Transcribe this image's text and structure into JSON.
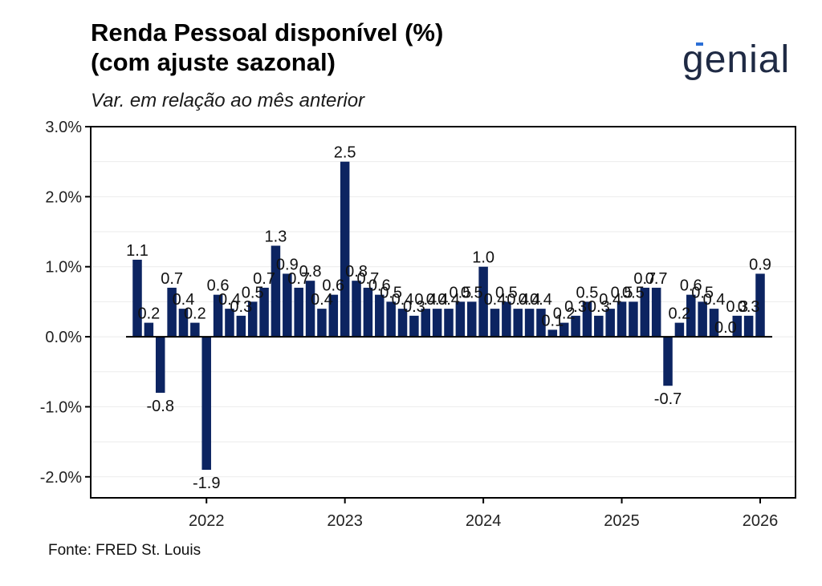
{
  "header": {
    "title": "Renda Pessoal disponível (%)\n(com ajuste sazonal)",
    "subtitle": "Var. em relação ao mês anterior",
    "logo_text": "genial"
  },
  "footer": {
    "source": "Fonte: FRED St. Louis"
  },
  "colors": {
    "bar": "#0c2461",
    "axis": "#000000",
    "grid": "#ebebeb",
    "logo": "#1f2a44",
    "logo_accent": "#2b6fd6"
  },
  "chart_data": {
    "type": "bar",
    "title": "Renda Pessoal disponível (%) (com ajuste sazonal)",
    "subtitle": "Var. em relação ao mês anterior",
    "xlabel": "",
    "ylabel": "",
    "ylim": [
      -2.3,
      3.0
    ],
    "yticks": [
      -2.0,
      -1.0,
      0.0,
      1.0,
      2.0,
      3.0
    ],
    "ytick_labels": [
      "-2.0%",
      "-1.0%",
      "0.0%",
      "1.0%",
      "2.0%",
      "3.0%"
    ],
    "xticks": [
      "2022",
      "2023",
      "2024",
      "2025",
      "2026"
    ],
    "grid": "horizontal",
    "categories": [
      "2021-07",
      "2021-08",
      "2021-09",
      "2021-10",
      "2021-11",
      "2021-12",
      "2022-01",
      "2022-02",
      "2022-03",
      "2022-04",
      "2022-05",
      "2022-06",
      "2022-07",
      "2022-08",
      "2022-09",
      "2022-10",
      "2022-11",
      "2022-12",
      "2023-01",
      "2023-02",
      "2023-03",
      "2023-04",
      "2023-05",
      "2023-06",
      "2023-07",
      "2023-08",
      "2023-09",
      "2023-10",
      "2023-11",
      "2023-12",
      "2024-01",
      "2024-02",
      "2024-03",
      "2024-04",
      "2024-05",
      "2024-06",
      "2024-07",
      "2024-08",
      "2024-09",
      "2024-10",
      "2024-11",
      "2024-12",
      "2025-01",
      "2025-02",
      "2025-03",
      "2025-04",
      "2025-05",
      "2025-06",
      "2025-07",
      "2025-08",
      "2025-09",
      "2025-10",
      "2025-11",
      "2025-12",
      "2026-01"
    ],
    "values": [
      1.1,
      0.2,
      -0.8,
      0.7,
      0.4,
      0.2,
      -1.9,
      0.6,
      0.4,
      0.3,
      0.5,
      0.7,
      1.3,
      0.9,
      0.7,
      0.8,
      0.4,
      0.6,
      2.5,
      0.8,
      0.7,
      0.6,
      0.5,
      0.4,
      0.3,
      0.4,
      0.4,
      0.4,
      0.5,
      0.5,
      1.0,
      0.4,
      0.5,
      0.4,
      0.4,
      0.4,
      0.1,
      0.2,
      0.3,
      0.5,
      0.3,
      0.4,
      0.5,
      0.5,
      0.7,
      0.7,
      -0.7,
      0.2,
      0.6,
      0.5,
      0.4,
      0.0,
      0.3,
      0.3,
      0.9
    ],
    "labels": [
      "1.1",
      "0.2",
      "-0.8",
      "0.7",
      "0.4",
      "0.2",
      "-1.9",
      "0.6",
      "0.4",
      "0.3",
      "0.5",
      "0.7",
      "1.3",
      "0.9",
      "0.7",
      "0.8",
      "0.4",
      "0.6",
      "2.5",
      "0.8",
      "0.7",
      "0.6",
      "0.5",
      "0.4",
      "0.3",
      "0.4",
      "0.4",
      "0.4",
      "0.5",
      "0.5",
      "1.0",
      "0.4",
      "0.5",
      "0.4",
      "0.4",
      "0.4",
      "0.1",
      "0.2",
      "0.3",
      "0.5",
      "0.3",
      "0.4",
      "0.5",
      "0.5",
      "0.7",
      "0.7",
      "-0.7",
      "0.2",
      "0.6",
      "0.5",
      "0.4",
      "0.0",
      "0.3",
      "0.3",
      "0.9"
    ]
  }
}
